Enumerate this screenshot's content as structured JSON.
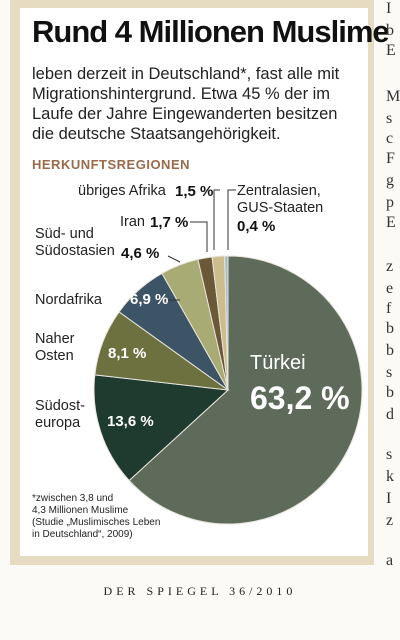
{
  "chart_data": {
    "type": "pie",
    "title": "Rund 4 Millionen Muslime",
    "subtitle": "leben derzeit in Deutschland*, fast alle mit\nMigrationshintergrund. Etwa 45 % der im\nLaufe der Jahre Eingewanderten besitzen\ndie deutsche Staatsangehörigkeit.",
    "section_label": "HERKUNFTSREGIONEN",
    "categories": [
      "Türkei",
      "Südost-\neuropa",
      "Naher\nOsten",
      "Nordafrika",
      "Süd- und\nSüdostasien",
      "Iran",
      "übriges Afrika",
      "Zentralasien,\nGUS-Staaten"
    ],
    "values": [
      63.2,
      13.6,
      8.1,
      6.9,
      4.6,
      1.7,
      1.5,
      0.4
    ],
    "value_labels": [
      "63,2 %",
      "13,6 %",
      "8,1 %",
      "6,9 %",
      "4,6 %",
      "1,7 %",
      "1,5 %",
      "0,4 %"
    ],
    "colors": [
      "#5f6b5a",
      "#1f3a2e",
      "#6d7140",
      "#3d5466",
      "#a8ab74",
      "#6a5838",
      "#cdbd8c",
      "#a2bccb"
    ],
    "footnote": "*zwischen 3,8 und\n4,3 Millionen Muslime\n(Studie „Muslimisches Leben\nin Deutschland“, 2009)"
  },
  "footer": "DER SPIEGEL 36/2010",
  "side_text": [
    "I",
    "b",
    "E",
    "M",
    "s",
    "c",
    "F",
    "g",
    "p",
    "E",
    "z",
    "e",
    "f",
    "b",
    "b",
    "s",
    "b",
    "d",
    "s",
    "k",
    "I",
    "z",
    "a"
  ]
}
